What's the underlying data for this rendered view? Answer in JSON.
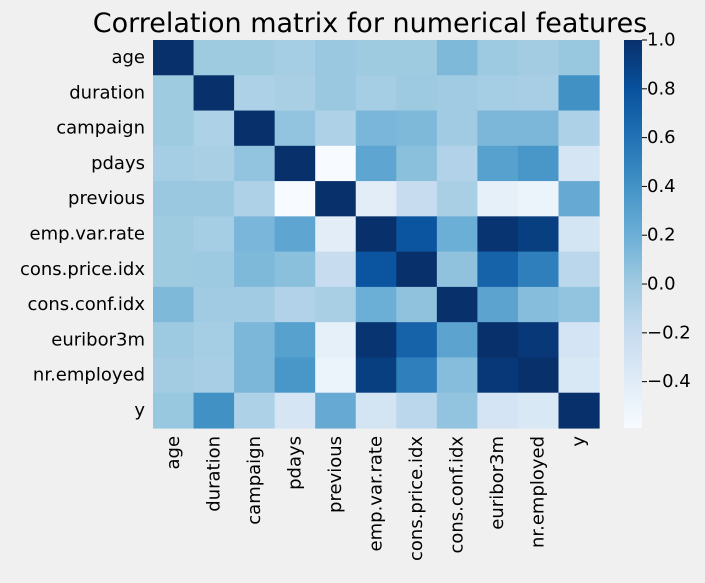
{
  "chart_data": {
    "type": "heatmap",
    "title": "Correlation matrix for numerical features",
    "xlabel": "",
    "ylabel": "",
    "rows": [
      "age",
      "duration",
      "campaign",
      "pdays",
      "previous",
      "emp.var.rate",
      "cons.price.idx",
      "cons.conf.idx",
      "euribor3m",
      "nr.employed",
      "y"
    ],
    "columns": [
      "age",
      "duration",
      "campaign",
      "pdays",
      "previous",
      "emp.var.rate",
      "cons.price.idx",
      "cons.conf.idx",
      "euribor3m",
      "nr.employed",
      "y"
    ],
    "values": [
      [
        1.0,
        -0.0,
        0.0,
        -0.03,
        0.02,
        -0.0,
        0.0,
        0.13,
        0.01,
        -0.02,
        0.03
      ],
      [
        -0.0,
        1.0,
        -0.07,
        -0.05,
        0.02,
        -0.03,
        0.01,
        -0.01,
        -0.03,
        -0.04,
        0.41
      ],
      [
        0.0,
        -0.07,
        1.0,
        0.05,
        -0.08,
        0.15,
        0.13,
        -0.01,
        0.14,
        0.14,
        -0.07
      ],
      [
        -0.03,
        -0.05,
        0.05,
        1.0,
        -0.59,
        0.27,
        0.08,
        -0.09,
        0.3,
        0.37,
        -0.32
      ],
      [
        0.02,
        0.02,
        -0.08,
        -0.59,
        1.0,
        -0.42,
        -0.2,
        -0.05,
        -0.45,
        -0.5,
        0.23
      ],
      [
        -0.0,
        -0.03,
        0.15,
        0.27,
        -0.42,
        1.0,
        0.78,
        0.2,
        0.97,
        0.91,
        -0.3
      ],
      [
        0.0,
        0.01,
        0.13,
        0.08,
        -0.2,
        0.78,
        1.0,
        0.06,
        0.69,
        0.52,
        -0.14
      ],
      [
        0.13,
        -0.01,
        -0.01,
        -0.09,
        -0.05,
        0.2,
        0.06,
        1.0,
        0.28,
        0.1,
        0.05
      ],
      [
        0.01,
        -0.03,
        0.14,
        0.3,
        -0.45,
        0.97,
        0.69,
        0.28,
        1.0,
        0.95,
        -0.31
      ],
      [
        -0.02,
        -0.04,
        0.14,
        0.37,
        -0.5,
        0.91,
        0.52,
        0.1,
        0.95,
        1.0,
        -0.35
      ],
      [
        0.03,
        0.41,
        -0.07,
        -0.32,
        0.23,
        -0.3,
        -0.14,
        0.05,
        -0.31,
        -0.35,
        1.0
      ]
    ],
    "vmin": -0.59,
    "vmax": 1.0,
    "colorbar_ticks": [
      1.0,
      0.8,
      0.6,
      0.4,
      0.2,
      0.0,
      -0.2,
      -0.4
    ],
    "colorbar_tick_labels": [
      "1.0",
      "0.8",
      "0.6",
      "0.4",
      "0.2",
      "0.0",
      "−0.2",
      "−0.4"
    ],
    "colormap": [
      "#f7fbff",
      "#deebf7",
      "#c6dbef",
      "#9ecae1",
      "#6baed6",
      "#4292c6",
      "#2171b5",
      "#08519c",
      "#08306b"
    ]
  }
}
